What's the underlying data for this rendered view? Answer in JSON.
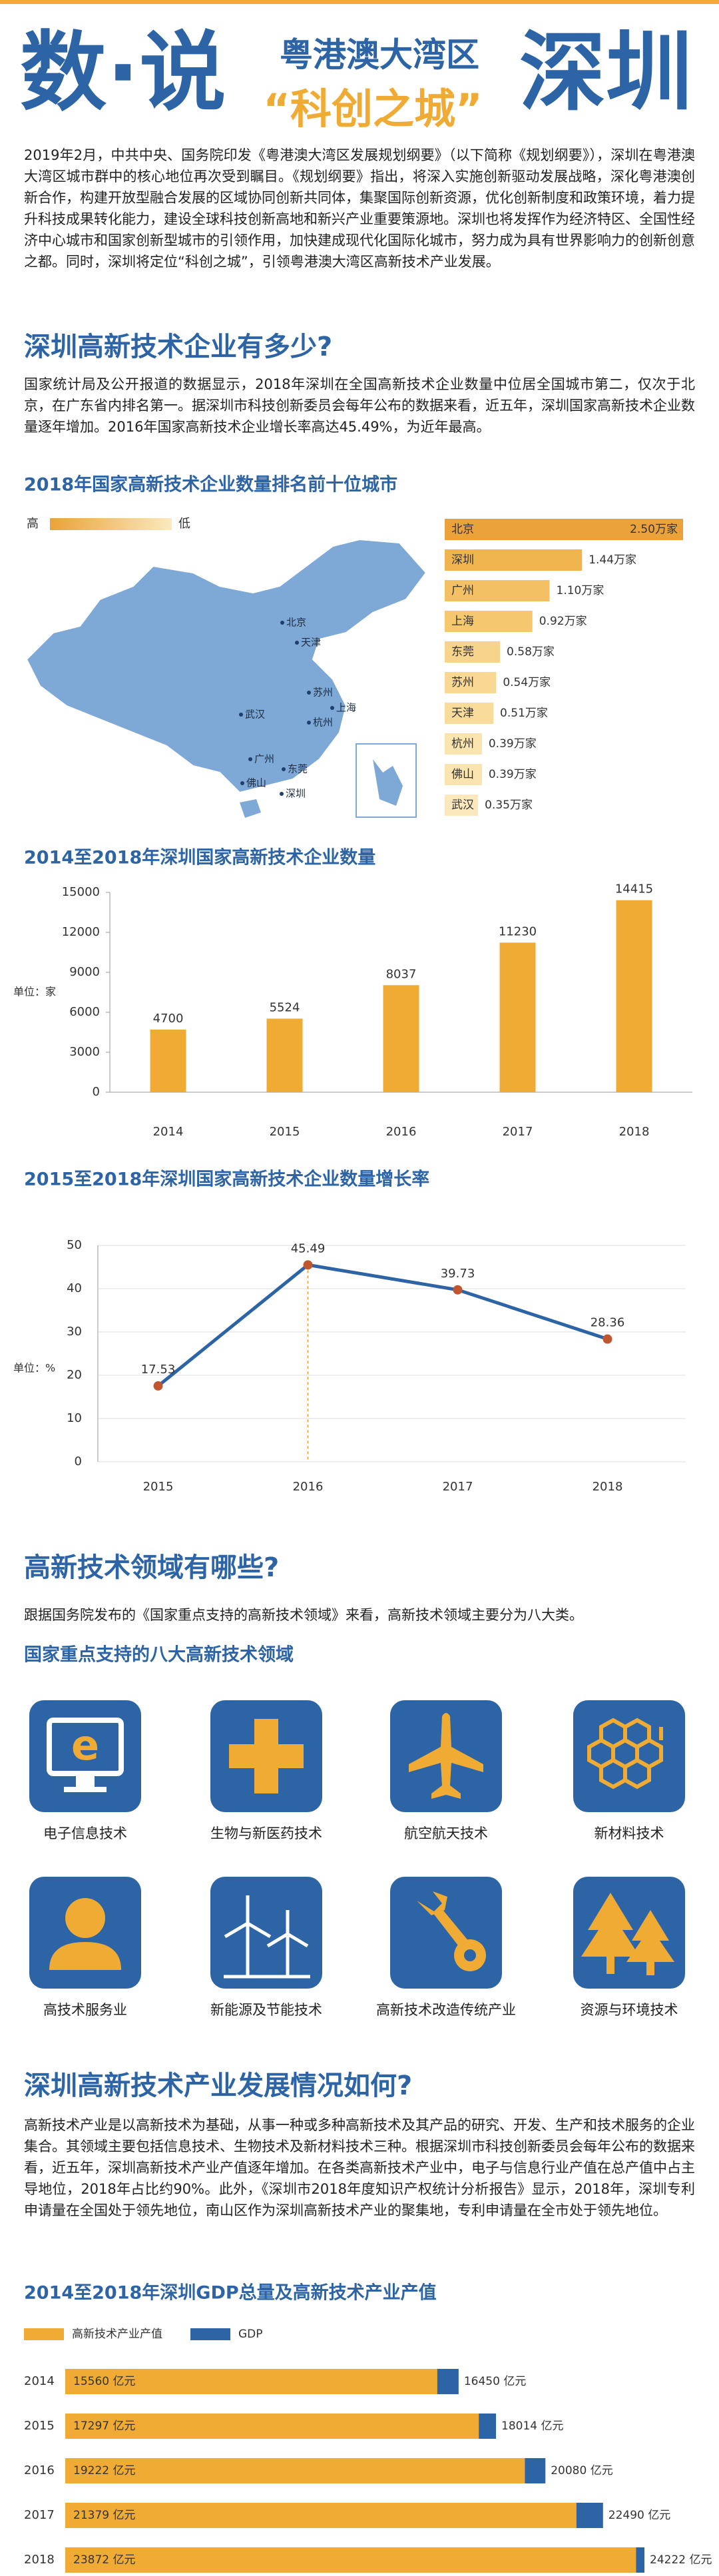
{
  "header": {
    "title_left": "数·说",
    "subtitle": "粤港澳大湾区",
    "tagline": "“科创之城”",
    "title_right": "深圳"
  },
  "intro": "2019年2月，中共中央、国务院印发《粤港澳大湾区发展规划纲要》（以下简称《规划纲要》），深圳在粤港澳大湾区城市群中的核心地位再次受到瞩目。《规划纲要》指出，将深入实施创新驱动发展战略，深化粤港澳创新合作，构建开放型融合发展的区域协同创新共同体，集聚国际创新资源，优化创新制度和政策环境，着力提升科技成果转化能力，建设全球科技创新高地和新兴产业重要策源地。深圳也将发挥作为经济特区、全国性经济中心城市和国家创新型城市的引领作用，加快建成现代化国际化城市，努力成为具有世界影响力的创新创意之都。同时，深圳将定位“科创之城”，引领粤港澳大湾区高新技术产业发展。",
  "section1": {
    "heading": "深圳高新技术企业有多少?",
    "text": "国家统计局及公开报道的数据显示，2018年深圳在全国高新技术企业数量中位居全国城市第二，仅次于北京，在广东省内排名第一。据深圳市科技创新委员会每年公布的数据来看，近五年，深圳国家高新技术企业数量逐年增加。2016年国家高新技术企业增长率高达45.49%，为近年最高。"
  },
  "section2": {
    "heading": "高新技术领域有哪些?",
    "text": "跟据国务院发布的《国家重点支持的高新技术领域》来看，高新技术领域主要分为八大类。",
    "subtitle": "国家重点支持的八大高新技术领域",
    "fields": [
      "电子信息技术",
      "生物与新医药技术",
      "航空航天技术",
      "新材料技术",
      "高技术服务业",
      "新能源及节能技术",
      "高新技术改造传统产业",
      "资源与环境技术"
    ]
  },
  "section3": {
    "heading": "深圳高新技术产业发展情况如何?",
    "text": "高新技术产业是以高新技术为基础，从事一种或多种高新技术及其产品的研究、开发、生产和技术服务的企业集合。其领域主要包括信息技术、生物技术及新材料技术三种。根据深圳市科技创新委员会每年公布的数据来看，近五年，深圳高新技术产业产值逐年增加。在各类高新技术产业中，电子与信息行业产值在总产值中占主导地位，2018年占比约90%。此外，《深圳市2018年度知识产权统计分析报告》显示，2018年，深圳专利申请量在全国处于领先地位，南山区作为深圳高新技术产业的聚集地，专利申请量在全市处于领先地位。"
  },
  "chart_data": [
    {
      "type": "hbar",
      "title": "2018年国家高新技术企业数量排名前十位城市",
      "legend_high": "高",
      "legend_low": "低",
      "categories": [
        "北京",
        "深圳",
        "广州",
        "上海",
        "东莞",
        "苏州",
        "天津",
        "杭州",
        "佛山",
        "武汉"
      ],
      "values": [
        2.5,
        1.44,
        1.1,
        0.92,
        0.58,
        0.54,
        0.51,
        0.39,
        0.39,
        0.35
      ],
      "value_labels": [
        "2.50万家",
        "1.44万家",
        "1.10万家",
        "0.92万家",
        "0.58万家",
        "0.54万家",
        "0.51万家",
        "0.39万家",
        "0.39万家",
        "0.35万家"
      ],
      "colors": [
        "#eba23a",
        "#f0b44e",
        "#f3c064",
        "#f5c870",
        "#f7d48c",
        "#f8d893",
        "#f9dc9c",
        "#fae4b0",
        "#fae4b0",
        "#fbe9bd"
      ]
    },
    {
      "type": "bar",
      "title": "2014至2018年深圳国家高新技术企业数量",
      "unit_label": "单位：家",
      "categories": [
        "2014",
        "2015",
        "2016",
        "2017",
        "2018"
      ],
      "values": [
        4700,
        5524,
        8037,
        11230,
        14415
      ],
      "color": "#f0ab35",
      "ylim": [
        0,
        15000
      ],
      "yticks": [
        0,
        3000,
        6000,
        9000,
        12000,
        15000
      ]
    },
    {
      "type": "line",
      "title": "2015至2018年深圳国家高新技术企业数量增长率",
      "unit_label": "单位：%",
      "categories": [
        "2015",
        "2016",
        "2017",
        "2018"
      ],
      "values": [
        17.53,
        45.49,
        39.73,
        28.36
      ],
      "color": "#2d64a5",
      "marker_color": "#c0562f",
      "ylim": [
        0,
        50
      ],
      "yticks": [
        0,
        10,
        20,
        30,
        40,
        50
      ],
      "grid": true
    },
    {
      "type": "overlay_hbar",
      "title": "2014至2018年深圳GDP总量及高新技术产业产值",
      "categories": [
        "2014",
        "2015",
        "2016",
        "2017",
        "2018"
      ],
      "series": [
        {
          "name": "高新技术产业产值",
          "color": "#f0ab35",
          "values": [
            15560,
            17297,
            19222,
            21379,
            23872
          ],
          "value_labels": [
            "15560 亿元",
            "17297 亿元",
            "19222 亿元",
            "21379 亿元",
            "23872 亿元"
          ]
        },
        {
          "name": "GDP",
          "color": "#2d64a5",
          "values": [
            16450,
            18014,
            20080,
            22490,
            24222
          ],
          "value_labels": [
            "16450 亿元",
            "18014 亿元",
            "20080 亿元",
            "22490 亿元",
            "24222 亿元"
          ]
        }
      ]
    }
  ]
}
